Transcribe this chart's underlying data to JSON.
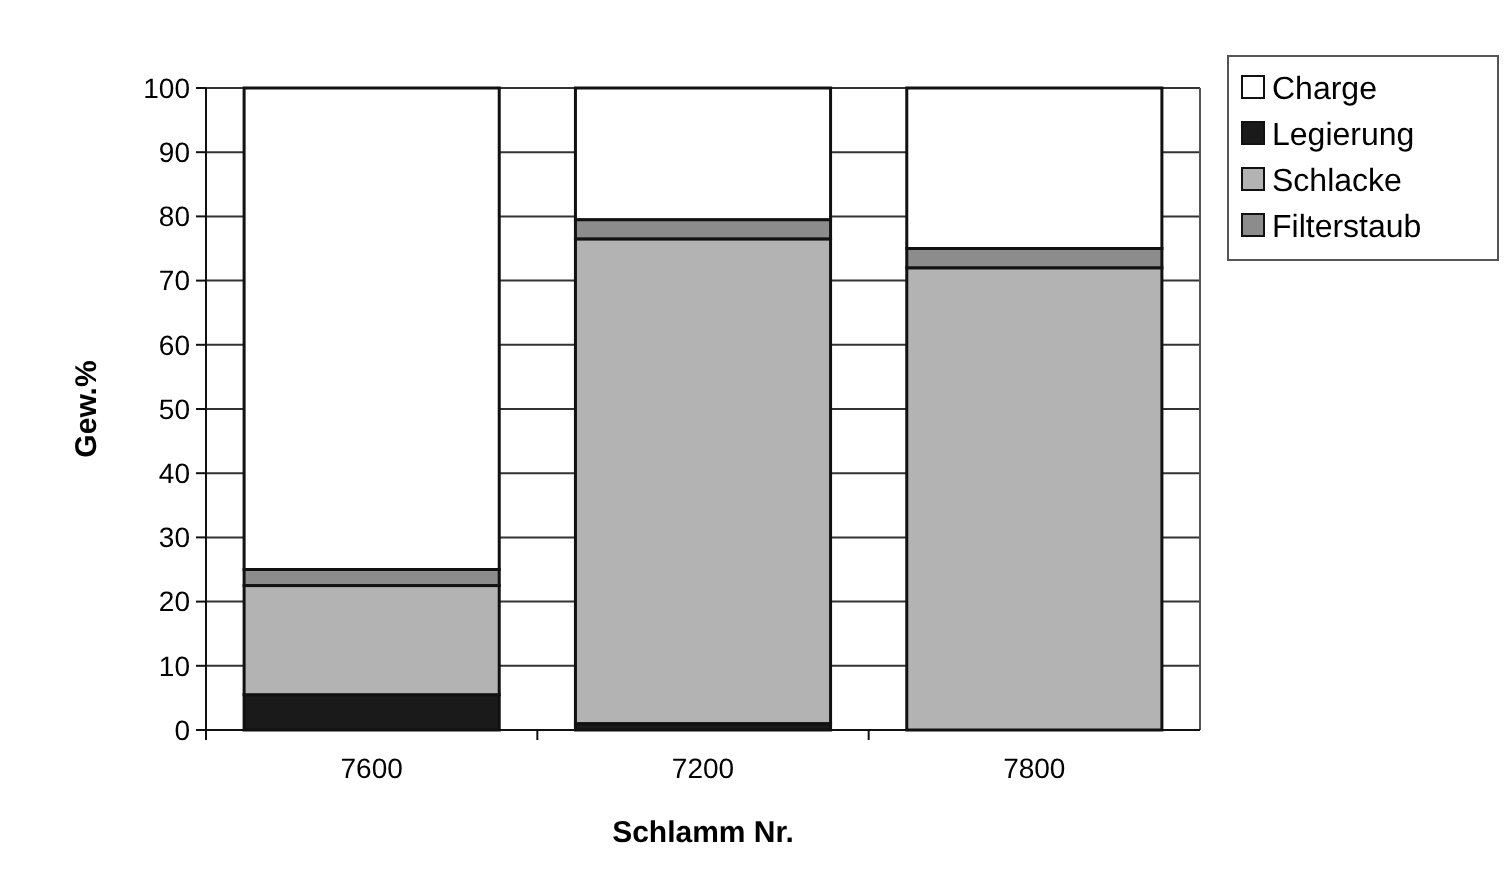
{
  "chart_data": {
    "type": "bar",
    "stacked": true,
    "xlabel": "Schlamm Nr.",
    "ylabel": "Gew.%",
    "categories": [
      "7600",
      "7200",
      "7800"
    ],
    "series": [
      {
        "name": "Legierung",
        "color": "#1a1a1a",
        "values": [
          5.5,
          1,
          null
        ]
      },
      {
        "name": "Schlacke",
        "color": "#b3b3b3",
        "values": [
          17,
          75.5,
          72
        ]
      },
      {
        "name": "Filterstaub",
        "color": "#8c8c8c",
        "values": [
          2.5,
          3,
          3
        ]
      },
      {
        "name": "Charge",
        "color": "#ffffff",
        "values": [
          75,
          20.5,
          25
        ]
      }
    ],
    "ylim": [
      0,
      100
    ],
    "yticks": [
      0,
      10,
      20,
      30,
      40,
      50,
      60,
      70,
      80,
      90,
      100
    ],
    "grid": "y",
    "legend": "top right"
  }
}
